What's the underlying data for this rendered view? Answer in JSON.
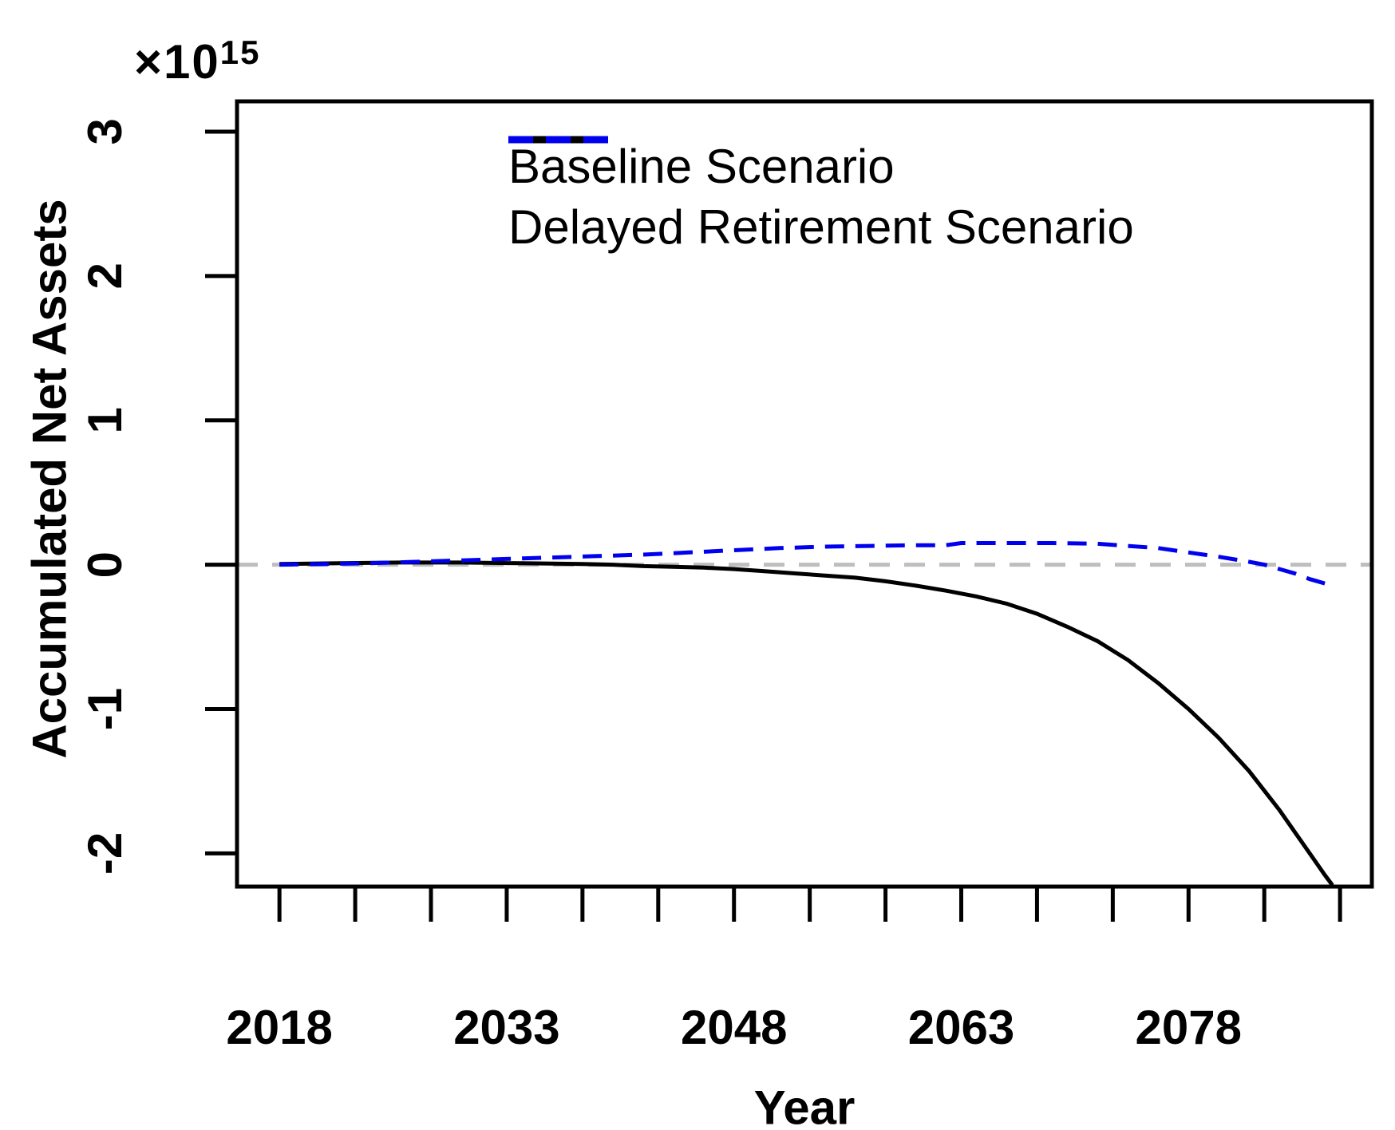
{
  "figure": {
    "background": "#ffffff",
    "y_axis_multiplier": {
      "base": "×10",
      "exponent": "15"
    },
    "y_axis_title": "Accumulated Net Assets",
    "x_axis_title": "Year"
  },
  "legend": {
    "position": "top-center-inside",
    "items": [
      {
        "label": "Baseline Scenario",
        "color": "#000000",
        "line_style": "solid"
      },
      {
        "label": "Delayed Retirement Scenario",
        "color": "#0000ee",
        "line_style": "dashed"
      }
    ]
  },
  "chart_data": {
    "type": "line",
    "title": "",
    "xlabel": "Year",
    "ylabel": "Accumulated Net Assets",
    "y_unit_multiplier": "1e15",
    "xlim": [
      2015.2,
      2090.1
    ],
    "ylim": [
      -2.23,
      3.21
    ],
    "grid": false,
    "x_ticks_minor": [
      2018,
      2023,
      2028,
      2033,
      2038,
      2043,
      2048,
      2053,
      2058,
      2063,
      2068,
      2073,
      2078,
      2083,
      2088
    ],
    "x_ticks_labeled": [
      2018,
      2033,
      2048,
      2063,
      2078
    ],
    "x_tick_labels": [
      "2018",
      "2033",
      "2048",
      "2063",
      "2078"
    ],
    "y_ticks": [
      3,
      2,
      1,
      0,
      -1,
      -2
    ],
    "y_tick_labels": [
      "3",
      "2",
      "1",
      "0",
      "-1",
      "-2"
    ],
    "reference_line": {
      "y": 0,
      "color": "#bebebe",
      "style": "dashed"
    },
    "series": [
      {
        "name": "Baseline Scenario",
        "color": "#000000",
        "style": "solid",
        "x": [
          2018,
          2022,
          2026,
          2030,
          2034,
          2038,
          2040,
          2042,
          2044,
          2046,
          2048,
          2050,
          2052,
          2054,
          2056,
          2058,
          2060,
          2062,
          2064,
          2066,
          2068,
          2070,
          2072,
          2074,
          2076,
          2078,
          2080,
          2082,
          2084,
          2085,
          2086,
          2087,
          2087.5
        ],
        "y": [
          0.005,
          0.01,
          0.015,
          0.015,
          0.01,
          0.005,
          0,
          -0.01,
          -0.015,
          -0.02,
          -0.03,
          -0.045,
          -0.06,
          -0.075,
          -0.09,
          -0.115,
          -0.145,
          -0.18,
          -0.22,
          -0.27,
          -0.34,
          -0.43,
          -0.53,
          -0.66,
          -0.82,
          -1.0,
          -1.2,
          -1.43,
          -1.7,
          -1.85,
          -2.0,
          -2.15,
          -2.22
        ]
      },
      {
        "name": "Delayed Retirement Scenario",
        "color": "#0000ee",
        "style": "dashed",
        "x": [
          2018,
          2021,
          2024,
          2027,
          2030,
          2033,
          2036,
          2039,
          2042,
          2045,
          2048,
          2051,
          2054,
          2057,
          2060,
          2062,
          2063,
          2066,
          2069,
          2072,
          2074,
          2076,
          2078,
          2080,
          2082,
          2083,
          2084,
          2085,
          2086,
          2087
        ],
        "y": [
          0.0,
          0.005,
          0.01,
          0.02,
          0.03,
          0.04,
          0.05,
          0.06,
          0.07,
          0.085,
          0.1,
          0.115,
          0.125,
          0.13,
          0.135,
          0.135,
          0.15,
          0.15,
          0.15,
          0.145,
          0.13,
          0.115,
          0.085,
          0.055,
          0.02,
          0.0,
          -0.03,
          -0.06,
          -0.1,
          -0.13
        ]
      }
    ]
  }
}
